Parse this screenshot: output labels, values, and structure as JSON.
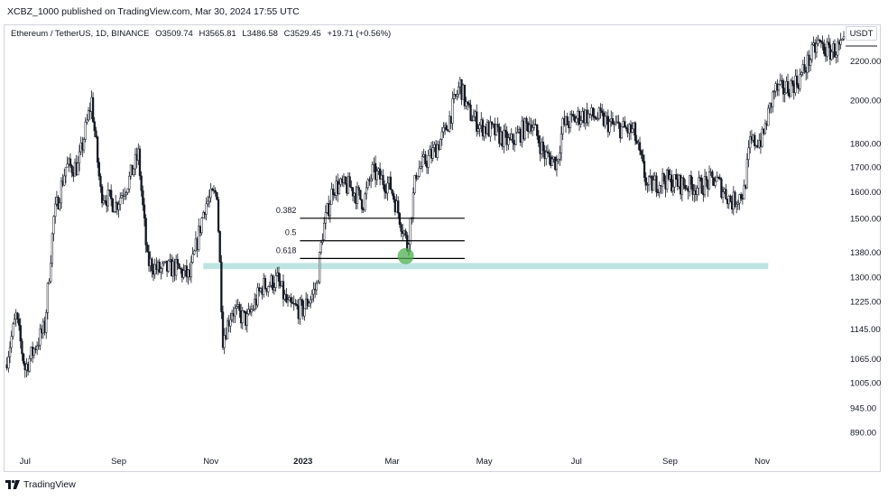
{
  "header": {
    "published": "XCBZ_1000 published on TradingView.com, Mar 30, 2024 17:55 UTC"
  },
  "legend": {
    "symbol": "Ethereum / TetherUS, 1D, BINANCE",
    "open": "O3509.74",
    "high": "H3565.81",
    "low": "L3486.58",
    "close": "C3529.45",
    "change": "+19.71 (+0.56%)"
  },
  "currency_button": "USDT",
  "footer": {
    "brand": "TradingView"
  },
  "colors": {
    "candle": "#131722",
    "zone": "#b2dfdb",
    "marker": "#4caf50",
    "fib_line": "#000000",
    "grid": "#ffffff"
  },
  "icons": {
    "brand": "tradingview-logo-icon"
  },
  "chart_data": {
    "type": "candlestick",
    "scale": "log",
    "y_ticks": [
      "2200.00",
      "2000.00",
      "1800.00",
      "1700.00",
      "1600.00",
      "1500.00",
      "1380.00",
      "1300.00",
      "1225.00",
      "1145.00",
      "1065.00",
      "1005.00",
      "945.00",
      "890.00"
    ],
    "y_tick_values": [
      2200,
      2000,
      1800,
      1700,
      1600,
      1500,
      1380,
      1300,
      1225,
      1145,
      1065,
      1005,
      945,
      890
    ],
    "x_ticks": [
      "Jul",
      "Sep",
      "Nov",
      "2023",
      "Mar",
      "May",
      "Jul",
      "Sep",
      "Nov"
    ],
    "x_tick_dates": [
      "2022-07-01",
      "2022-09-01",
      "2022-11-01",
      "2023-01-01",
      "2023-03-01",
      "2023-05-01",
      "2023-07-01",
      "2023-09-01",
      "2023-11-01"
    ],
    "x_range": [
      "2022-06-18",
      "2023-12-25"
    ],
    "ylim": [
      850,
      2380
    ],
    "path": [
      [
        "2022-06-18",
        1050
      ],
      [
        "2022-06-25",
        1180
      ],
      [
        "2022-07-01",
        1040
      ],
      [
        "2022-07-08",
        1100
      ],
      [
        "2022-07-14",
        1150
      ],
      [
        "2022-07-20",
        1500
      ],
      [
        "2022-07-28",
        1700
      ],
      [
        "2022-08-05",
        1700
      ],
      [
        "2022-08-14",
        2000
      ],
      [
        "2022-08-20",
        1600
      ],
      [
        "2022-08-30",
        1550
      ],
      [
        "2022-09-08",
        1650
      ],
      [
        "2022-09-14",
        1750
      ],
      [
        "2022-09-20",
        1350
      ],
      [
        "2022-09-28",
        1320
      ],
      [
        "2022-10-08",
        1330
      ],
      [
        "2022-10-18",
        1300
      ],
      [
        "2022-10-28",
        1550
      ],
      [
        "2022-11-05",
        1600
      ],
      [
        "2022-11-09",
        1120
      ],
      [
        "2022-11-15",
        1200
      ],
      [
        "2022-11-25",
        1170
      ],
      [
        "2022-12-05",
        1270
      ],
      [
        "2022-12-15",
        1290
      ],
      [
        "2022-12-22",
        1210
      ],
      [
        "2023-01-01",
        1200
      ],
      [
        "2023-01-10",
        1270
      ],
      [
        "2023-01-14",
        1450
      ],
      [
        "2023-01-21",
        1620
      ],
      [
        "2023-02-01",
        1620
      ],
      [
        "2023-02-10",
        1560
      ],
      [
        "2023-02-16",
        1680
      ],
      [
        "2023-02-28",
        1620
      ],
      [
        "2023-03-09",
        1450
      ],
      [
        "2023-03-11",
        1400
      ],
      [
        "2023-03-17",
        1680
      ],
      [
        "2023-03-27",
        1750
      ],
      [
        "2023-04-05",
        1850
      ],
      [
        "2023-04-15",
        2080
      ],
      [
        "2023-04-20",
        1950
      ],
      [
        "2023-04-28",
        1880
      ],
      [
        "2023-05-08",
        1850
      ],
      [
        "2023-05-18",
        1800
      ],
      [
        "2023-06-01",
        1900
      ],
      [
        "2023-06-10",
        1750
      ],
      [
        "2023-06-18",
        1720
      ],
      [
        "2023-06-22",
        1880
      ],
      [
        "2023-07-05",
        1930
      ],
      [
        "2023-07-15",
        1920
      ],
      [
        "2023-07-25",
        1880
      ],
      [
        "2023-08-08",
        1850
      ],
      [
        "2023-08-17",
        1620
      ],
      [
        "2023-08-28",
        1650
      ],
      [
        "2023-09-08",
        1630
      ],
      [
        "2023-09-20",
        1620
      ],
      [
        "2023-10-01",
        1650
      ],
      [
        "2023-10-12",
        1560
      ],
      [
        "2023-10-20",
        1600
      ],
      [
        "2023-10-24",
        1800
      ],
      [
        "2023-11-01",
        1820
      ],
      [
        "2023-11-09",
        2050
      ],
      [
        "2023-11-15",
        2050
      ],
      [
        "2023-11-25",
        2100
      ],
      [
        "2023-12-08",
        2300
      ],
      [
        "2023-12-15",
        2250
      ],
      [
        "2023-12-25",
        2280
      ]
    ],
    "fib_levels": [
      {
        "label": "0.382",
        "value": 1500
      },
      {
        "label": "0.5",
        "value": 1420
      },
      {
        "label": "0.618",
        "value": 1360
      }
    ],
    "fib_range": [
      "2022-12-30",
      "2023-04-18"
    ],
    "support_zone": {
      "low": 1325,
      "high": 1345,
      "from": "2022-10-27",
      "to": "2023-11-05"
    },
    "marker": {
      "date": "2023-03-10",
      "value": 1368
    }
  }
}
